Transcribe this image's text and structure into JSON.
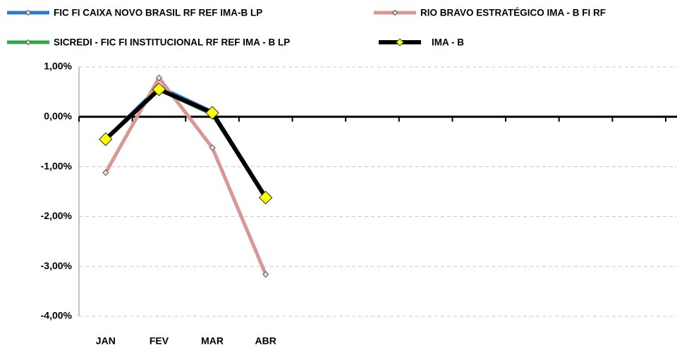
{
  "chart_data": {
    "type": "line",
    "categories": [
      "JAN",
      "FEV",
      "MAR",
      "ABR",
      null,
      null,
      null,
      null,
      null,
      null,
      null
    ],
    "series": [
      {
        "name": "FIC FI CAIXA NOVO BRASIL RF REF IMA-B LP",
        "color": "#2a7bc9",
        "marker_color": "#f2dcdb",
        "values": [
          -0.45,
          0.6,
          0.1,
          -1.6,
          null,
          null,
          null,
          null,
          null,
          null,
          null
        ]
      },
      {
        "name": "RIO BRAVO ESTRATÉGICO IMA - B FI RF",
        "color": "#d99694",
        "marker_color": "#f2dcdb",
        "values": [
          -1.12,
          0.78,
          -0.62,
          -3.16,
          null,
          null,
          null,
          null,
          null,
          null,
          null
        ]
      },
      {
        "name": "SICREDI - FIC FI INSTITUCIONAL RF REF IMA - B LP",
        "color": "#2ea84a",
        "marker_color": "#d7e4bd",
        "values": [
          -0.45,
          0.55,
          0.05,
          -1.6,
          null,
          null,
          null,
          null,
          null,
          null,
          null
        ]
      },
      {
        "name": "IMA - B",
        "color": "#000000",
        "marker_color": "#ffff00",
        "values": [
          -0.45,
          0.55,
          0.08,
          -1.62,
          null,
          null,
          null,
          null,
          null,
          null,
          null
        ]
      }
    ],
    "ylim": [
      -4,
      1
    ],
    "yticks": [
      {
        "value": 1,
        "label": "1,00%"
      },
      {
        "value": 0,
        "label": "0,00%"
      },
      {
        "value": -1,
        "label": "-1,00%"
      },
      {
        "value": -2,
        "label": "-2,00%"
      },
      {
        "value": -3,
        "label": "-3,00%"
      },
      {
        "value": -4,
        "label": "-4,00%"
      }
    ],
    "grid": true,
    "legend": "top"
  }
}
